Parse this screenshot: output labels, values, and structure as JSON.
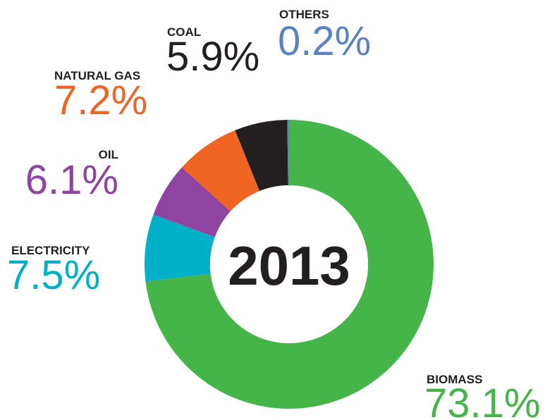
{
  "chart_data": {
    "type": "donut",
    "center_label": "2013",
    "categories": [
      "BIOMASS",
      "ELECTRICITY",
      "OIL",
      "NATURAL GAS",
      "COAL",
      "OTHERS"
    ],
    "values": [
      73.1,
      7.5,
      6.1,
      7.2,
      5.9,
      0.2
    ],
    "value_labels": [
      "73.1%",
      "7.5%",
      "6.1%",
      "7.2%",
      "5.9%",
      "0.2%"
    ],
    "colors": [
      "#45b549",
      "#00b0c8",
      "#8e44a0",
      "#f06424",
      "#231f20",
      "#5b82c4"
    ]
  }
}
